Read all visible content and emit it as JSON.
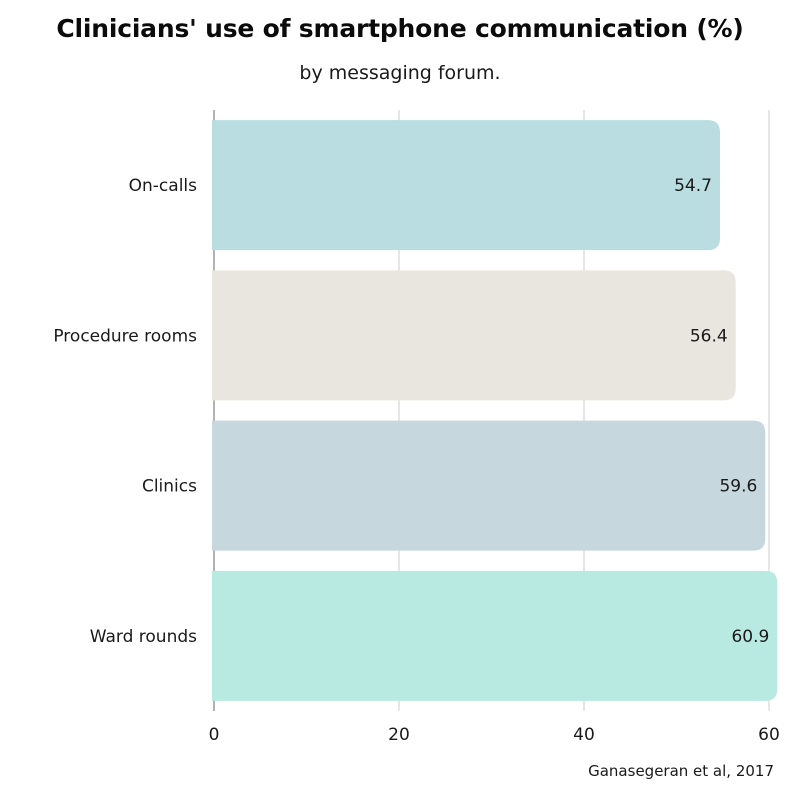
{
  "chart_data": {
    "type": "bar",
    "orientation": "horizontal",
    "title": "Clinicians' use of smartphone communication (%)",
    "subtitle": "by messaging forum.",
    "categories": [
      "On-calls",
      "Procedure rooms",
      "Clinics",
      "Ward rounds"
    ],
    "values": [
      54.7,
      56.4,
      59.6,
      60.9
    ],
    "value_labels": [
      "54.7",
      "56.4",
      "59.6",
      "60.9"
    ],
    "bar_colors": [
      "#b9dde0",
      "#e9e5df",
      "#c6d7de",
      "#b8eae1"
    ],
    "xlim": [
      0,
      60
    ],
    "xticks": [
      0,
      20,
      40,
      60
    ],
    "xtick_labels": [
      "0",
      "20",
      "40",
      "60"
    ],
    "grid": true,
    "source": "Ganasegeran et al, 2017"
  }
}
